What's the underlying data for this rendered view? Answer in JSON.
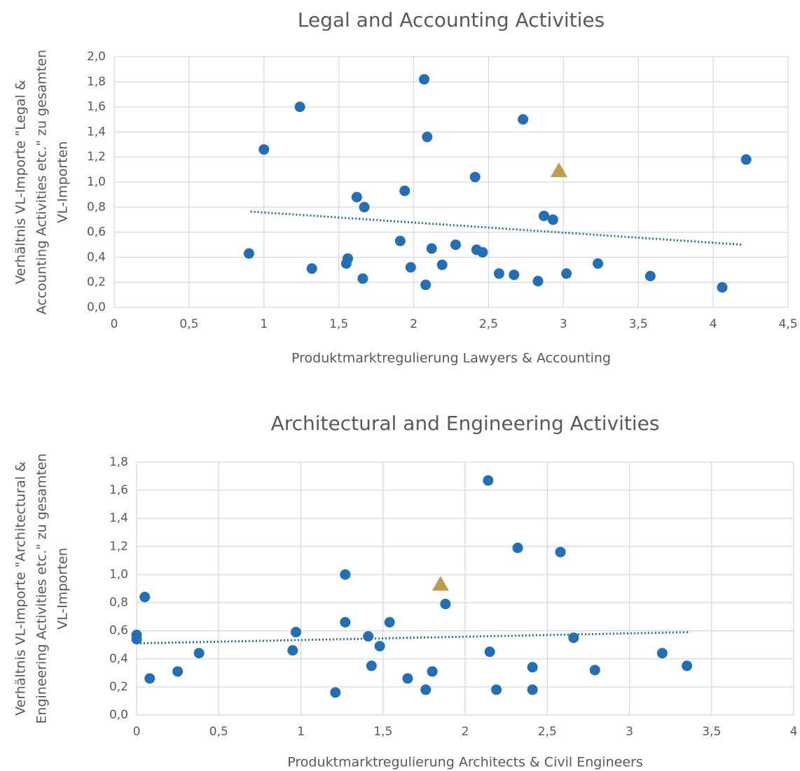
{
  "chart_data": [
    {
      "type": "scatter",
      "title": "Legal and Accounting Activities",
      "xlabel": "Produktmarktregulierung Lawyers & Accounting",
      "ylabel": [
        "Verhältnis VL-Importe \"Legal &",
        "Accounting Activities etc.\" zu gesamten",
        "VL-Importen"
      ],
      "xlim": [
        0,
        4.5
      ],
      "xticks": [
        0,
        {
          "value": 0.5,
          "label": "0,5"
        },
        1,
        {
          "value": 1.5,
          "label": "1,5"
        },
        2,
        {
          "value": 2.5,
          "label": "2,5"
        },
        3,
        {
          "value": 3.5,
          "label": "3,5"
        },
        4,
        {
          "value": 4.5,
          "label": "4,5"
        }
      ],
      "ylim": [
        0,
        2
      ],
      "yticks": [
        {
          "value": 0,
          "label": "0,0"
        },
        {
          "value": 0.2,
          "label": "0,2"
        },
        {
          "value": 0.4,
          "label": "0,4"
        },
        {
          "value": 0.6,
          "label": "0,6"
        },
        {
          "value": 0.8,
          "label": "0,8"
        },
        {
          "value": 1,
          "label": "1,0"
        },
        {
          "value": 1.2,
          "label": "1,2"
        },
        {
          "value": 1.4,
          "label": "1,4"
        },
        {
          "value": 1.6,
          "label": "1,6"
        },
        {
          "value": 1.8,
          "label": "1,8"
        },
        {
          "value": 2,
          "label": "2,0"
        }
      ],
      "grid": true,
      "series": [
        {
          "marker": "circle",
          "color": "#1f70b8",
          "x": [
            0.9,
            1.0,
            1.24,
            1.32,
            1.55,
            1.56,
            1.62,
            1.66,
            1.67,
            1.91,
            1.94,
            1.98,
            2.07,
            2.09,
            2.08,
            2.12,
            2.19,
            2.28,
            2.41,
            2.42,
            2.46,
            2.57,
            2.67,
            2.73,
            2.83,
            2.87,
            2.93,
            3.02,
            3.23,
            3.58,
            4.06,
            4.22
          ],
          "y": [
            0.43,
            1.26,
            1.6,
            0.31,
            0.35,
            0.39,
            0.88,
            0.23,
            0.8,
            0.53,
            0.93,
            0.32,
            1.82,
            1.36,
            0.18,
            0.47,
            0.34,
            0.5,
            1.04,
            0.46,
            0.44,
            0.27,
            0.26,
            1.5,
            0.21,
            0.73,
            0.7,
            0.27,
            0.35,
            0.25,
            0.16,
            1.18
          ]
        },
        {
          "marker": "triangle",
          "color": "#bf9b4a",
          "x": [
            2.97
          ],
          "y": [
            1.09
          ]
        }
      ],
      "trendline": {
        "color": "#1f70b8",
        "x": [
          0.91,
          4.2
        ],
        "y": [
          0.765,
          0.5
        ]
      }
    },
    {
      "type": "scatter",
      "title": "Architectural and Engineering Activities",
      "xlabel": "Produktmarktregulierung Architects & Civil Engineers",
      "ylabel": [
        "Verhältnis VL-Importe \"Architectural &",
        "Engineering Activities etc.\" zu gesamten",
        "VL-Importen"
      ],
      "xlim": [
        0,
        4
      ],
      "xticks": [
        0,
        {
          "value": 0.5,
          "label": "0,5"
        },
        1,
        {
          "value": 1.5,
          "label": "1,5"
        },
        2,
        {
          "value": 2.5,
          "label": "2,5"
        },
        3,
        {
          "value": 3.5,
          "label": "3,5"
        },
        4
      ],
      "ylim": [
        0,
        1.8
      ],
      "yticks": [
        {
          "value": 0,
          "label": "0,0"
        },
        {
          "value": 0.2,
          "label": "0,2"
        },
        {
          "value": 0.4,
          "label": "0,4"
        },
        {
          "value": 0.6,
          "label": "0,6"
        },
        {
          "value": 0.8,
          "label": "0,8"
        },
        {
          "value": 1,
          "label": "1,0"
        },
        {
          "value": 1.2,
          "label": "1,2"
        },
        {
          "value": 1.4,
          "label": "1,4"
        },
        {
          "value": 1.6,
          "label": "1,6"
        },
        {
          "value": 1.8,
          "label": "1,8"
        }
      ],
      "grid": true,
      "series": [
        {
          "marker": "circle",
          "color": "#1f70b8",
          "x": [
            0,
            0,
            0.05,
            0.08,
            0.25,
            0.38,
            0.95,
            0.97,
            1.21,
            1.27,
            1.27,
            1.41,
            1.43,
            1.48,
            1.54,
            1.65,
            1.76,
            1.8,
            1.88,
            2.14,
            2.15,
            2.19,
            2.32,
            2.41,
            2.41,
            2.58,
            2.66,
            2.79,
            3.2,
            3.35
          ],
          "y": [
            0.57,
            0.54,
            0.84,
            0.26,
            0.31,
            0.44,
            0.46,
            0.59,
            0.16,
            1.0,
            0.66,
            0.56,
            0.35,
            0.49,
            0.66,
            0.26,
            0.18,
            0.31,
            0.79,
            1.67,
            0.45,
            0.18,
            1.19,
            0.34,
            0.18,
            1.16,
            0.55,
            0.32,
            0.44,
            0.35
          ]
        },
        {
          "marker": "triangle",
          "color": "#bf9b4a",
          "x": [
            1.85
          ],
          "y": [
            0.93
          ]
        }
      ],
      "trendline": {
        "color": "#1f70b8",
        "x": [
          0,
          3.37
        ],
        "y": [
          0.51,
          0.59
        ]
      }
    }
  ]
}
